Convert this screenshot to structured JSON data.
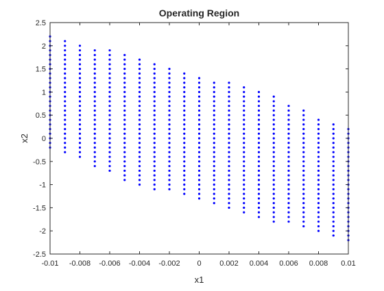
{
  "chart_data": {
    "type": "scatter",
    "title": "Operating Region",
    "xlabel": "x1",
    "ylabel": "x2",
    "xlim": [
      -0.01,
      0.01
    ],
    "ylim": [
      -2.5,
      2.5
    ],
    "xticks": [
      "-0.01",
      "-0.008",
      "-0.006",
      "-0.004",
      "-0.002",
      "0",
      "0.002",
      "0.004",
      "0.006",
      "0.008",
      "0.01"
    ],
    "xtick_values": [
      -0.01,
      -0.008,
      -0.006,
      -0.004,
      -0.002,
      0,
      0.002,
      0.004,
      0.006,
      0.008,
      0.01
    ],
    "yticks": [
      "-2.5",
      "-2",
      "-1.5",
      "-1",
      "-0.5",
      "0",
      "0.5",
      "1",
      "1.5",
      "2",
      "2.5"
    ],
    "ytick_values": [
      -2.5,
      -2,
      -1.5,
      -1,
      -0.5,
      0,
      0.5,
      1,
      1.5,
      2,
      2.5
    ],
    "grid": false,
    "marker_color": "#0000ff",
    "series": [
      {
        "columns": [
          {
            "x": -0.01,
            "y_min": -0.2,
            "y_max": 2.2
          },
          {
            "x": -0.009,
            "y_min": -0.3,
            "y_max": 2.1
          },
          {
            "x": -0.008,
            "y_min": -0.4,
            "y_max": 2.0
          },
          {
            "x": -0.007,
            "y_min": -0.6,
            "y_max": 1.9
          },
          {
            "x": -0.006,
            "y_min": -0.7,
            "y_max": 1.9
          },
          {
            "x": -0.005,
            "y_min": -0.9,
            "y_max": 1.8
          },
          {
            "x": -0.004,
            "y_min": -1.0,
            "y_max": 1.7
          },
          {
            "x": -0.003,
            "y_min": -1.1,
            "y_max": 1.6
          },
          {
            "x": -0.002,
            "y_min": -1.1,
            "y_max": 1.5
          },
          {
            "x": -0.001,
            "y_min": -1.2,
            "y_max": 1.4
          },
          {
            "x": 0,
            "y_min": -1.3,
            "y_max": 1.3
          },
          {
            "x": 0.001,
            "y_min": -1.4,
            "y_max": 1.2
          },
          {
            "x": 0.002,
            "y_min": -1.5,
            "y_max": 1.2
          },
          {
            "x": 0.003,
            "y_min": -1.6,
            "y_max": 1.1
          },
          {
            "x": 0.004,
            "y_min": -1.7,
            "y_max": 1.0
          },
          {
            "x": 0.005,
            "y_min": -1.8,
            "y_max": 0.9
          },
          {
            "x": 0.006,
            "y_min": -1.8,
            "y_max": 0.7
          },
          {
            "x": 0.007,
            "y_min": -1.9,
            "y_max": 0.6
          },
          {
            "x": 0.008,
            "y_min": -2.0,
            "y_max": 0.4
          },
          {
            "x": 0.009,
            "y_min": -2.1,
            "y_max": 0.3
          },
          {
            "x": 0.01,
            "y_min": -2.2,
            "y_max": 0.2
          }
        ],
        "y_step": 0.1
      }
    ]
  }
}
